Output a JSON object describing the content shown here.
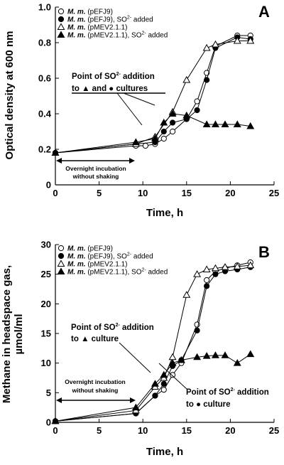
{
  "chart_data": [
    {
      "type": "line",
      "panel_label": "A",
      "xlabel": "Time, h",
      "ylabel": "Optical density at 600 nm",
      "xlim": [
        0,
        25
      ],
      "ylim": [
        0,
        1.0
      ],
      "xticks": [
        "0",
        "5",
        "10",
        "15",
        "20",
        "25"
      ],
      "yticks": [
        "0",
        "0.2",
        "0.4",
        "0.6",
        "0.8",
        "1.0"
      ],
      "grid": false,
      "legend_position": "top-left",
      "series": [
        {
          "name_italic": "M. m.",
          "name_rest": " (pEFJ9)",
          "name_sup": "",
          "marker": "circle-open",
          "x": [
            0,
            9.2,
            10.3,
            11.4,
            12.4,
            13.4,
            15.0,
            16.2,
            17.3,
            18.3,
            20.8,
            22.3
          ],
          "y": [
            0.18,
            0.22,
            0.22,
            0.23,
            0.26,
            0.3,
            0.37,
            0.47,
            0.63,
            0.78,
            0.84,
            0.84
          ]
        },
        {
          "name_italic": "M. m.",
          "name_rest": " (pEFJ9), SO",
          "name_sup": "2-",
          "name_tail": " added",
          "marker": "circle-filled",
          "x": [
            0,
            9.2,
            11.4,
            12.4,
            13.4,
            15.0,
            16.2,
            17.3,
            18.3,
            20.8,
            22.3
          ],
          "y": [
            0.18,
            0.23,
            0.24,
            0.3,
            0.35,
            0.37,
            0.42,
            0.59,
            0.77,
            0.83,
            0.82
          ]
        },
        {
          "name_italic": "M. m.",
          "name_rest": " (pMEV2.1.1)",
          "name_sup": "",
          "marker": "triangle-open",
          "x": [
            0,
            9.2,
            11.4,
            13.4,
            15.0,
            17.3,
            18.3,
            20.8,
            22.3
          ],
          "y": [
            0.18,
            0.23,
            0.27,
            0.41,
            0.59,
            0.77,
            0.79,
            0.81,
            0.81
          ]
        },
        {
          "name_italic": "M. m.",
          "name_rest": " (pMEV2.1.1), SO",
          "name_sup": "2-",
          "name_tail": " added",
          "marker": "triangle-filled",
          "x": [
            0,
            9.2,
            11.4,
            12.4,
            13.4,
            15.0,
            17.3,
            18.3,
            19.4,
            20.8,
            22.3
          ],
          "y": [
            0.18,
            0.24,
            0.26,
            0.35,
            0.4,
            0.39,
            0.34,
            0.34,
            0.34,
            0.34,
            0.33
          ]
        }
      ],
      "annotations": [
        {
          "line1": "Point of SO",
          "sup": "2-",
          "line1_tail": " addition",
          "line2_pre": "to ",
          "line2_mid": " and ",
          "line2_post": " cultures"
        },
        {
          "line1": "Overnight incubation",
          "line2": "without shaking"
        }
      ]
    },
    {
      "type": "line",
      "panel_label": "B",
      "xlabel": "Time, h",
      "ylabel_line1": "Methane in headspace gas,",
      "ylabel_line2": "µmol/ml",
      "xlim": [
        0,
        25
      ],
      "ylim": [
        0,
        30
      ],
      "xticks": [
        "0",
        "5",
        "10",
        "15",
        "20",
        "25"
      ],
      "yticks": [
        "0",
        "5",
        "10",
        "15",
        "20",
        "25",
        "30"
      ],
      "grid": false,
      "legend_position": "top-left",
      "series": [
        {
          "name_italic": "M. m.",
          "name_rest": " (pEFJ9)",
          "name_sup": "",
          "marker": "circle-open",
          "x": [
            0,
            9.2,
            11.4,
            12.4,
            13.4,
            14.4,
            16.2,
            17.3,
            18.3,
            19.4,
            20.8,
            22.3
          ],
          "y": [
            0.2,
            1.5,
            4.5,
            5.5,
            8.0,
            10.0,
            16.5,
            24.0,
            25.5,
            26.0,
            26.5,
            27.0
          ]
        },
        {
          "name_italic": "M. m.",
          "name_rest": " (pEFJ9), SO",
          "name_sup": "2-",
          "name_tail": " added",
          "marker": "circle-filled",
          "x": [
            0,
            9.2,
            11.4,
            12.4,
            13.4,
            14.4,
            16.2,
            17.3,
            18.3,
            19.4,
            20.8,
            22.3
          ],
          "y": [
            0.2,
            1.5,
            4.5,
            6.5,
            9.5,
            10.5,
            15.5,
            23.0,
            25.0,
            25.5,
            25.8,
            26.2
          ]
        },
        {
          "name_italic": "M. m.",
          "name_rest": " (pMEV2.1.1)",
          "name_sup": "",
          "marker": "triangle-open",
          "x": [
            0,
            9.2,
            11.4,
            12.4,
            13.4,
            15.0,
            16.2,
            17.3,
            18.3,
            19.4,
            20.8,
            22.3
          ],
          "y": [
            0.2,
            2.0,
            6.0,
            7.5,
            11.0,
            21.5,
            25.0,
            25.8,
            26.0,
            26.2,
            26.3,
            26.5
          ]
        },
        {
          "name_italic": "M. m.",
          "name_rest": " (pMEV2.1.1), SO",
          "name_sup": "2-",
          "name_tail": "  added",
          "marker": "triangle-filled",
          "x": [
            0,
            9.2,
            11.4,
            12.4,
            13.4,
            14.4,
            16.2,
            17.3,
            18.3,
            19.4,
            20.8,
            22.3
          ],
          "y": [
            0.2,
            2.5,
            6.5,
            8.0,
            10.0,
            10.5,
            11.0,
            11.2,
            11.3,
            11.3,
            10.0,
            11.5
          ]
        }
      ],
      "annotations": [
        {
          "line1": "Point of SO",
          "sup": "2-",
          "line1_tail": " addition",
          "line2_pre": "to ",
          "line2_post": " culture"
        },
        {
          "line1": "Point of SO",
          "sup": "2-",
          "line1_tail": " addition",
          "line2_pre": "to ",
          "line2_post": " culture"
        },
        {
          "line1": "Overnight incubation",
          "line2": "without shaking"
        }
      ]
    }
  ]
}
